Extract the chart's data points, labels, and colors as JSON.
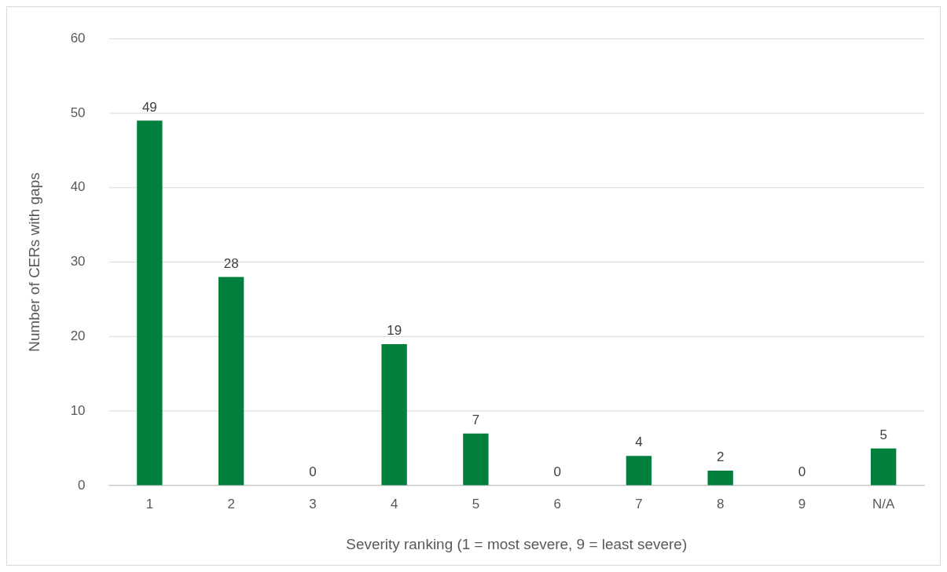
{
  "chart_data": {
    "type": "bar",
    "xlabel": "Severity ranking (1 = most severe, 9 = least severe)",
    "ylabel": "Number of CERs with gaps",
    "categories": [
      "1",
      "2",
      "3",
      "4",
      "5",
      "6",
      "7",
      "8",
      "9",
      "N/A"
    ],
    "values": [
      49,
      28,
      0,
      19,
      7,
      0,
      4,
      2,
      0,
      5
    ],
    "color": "#00803c",
    "ylim": [
      0,
      60
    ],
    "yticks": [
      0,
      10,
      20,
      30,
      40,
      50,
      60
    ],
    "grid": "y",
    "legend": false,
    "data_labels": true
  }
}
